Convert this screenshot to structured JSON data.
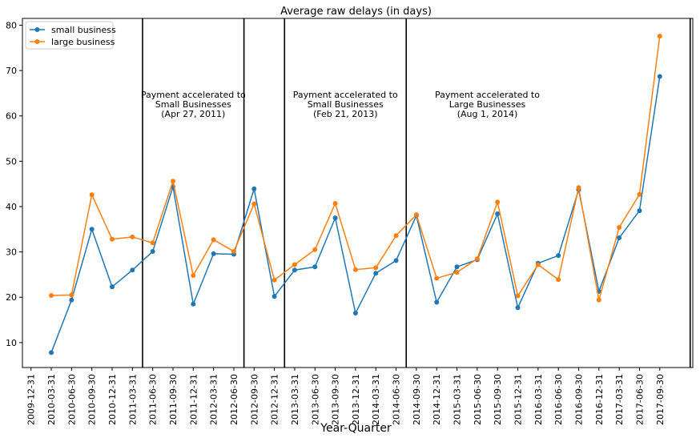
{
  "chart_data": {
    "type": "line",
    "title": "Average raw  delays (in days)",
    "xlabel": "Year-Quarter",
    "ylabel": "",
    "categories": [
      "2009-12-31",
      "2010-03-31",
      "2010-06-30",
      "2010-09-30",
      "2010-12-31",
      "2011-03-31",
      "2011-06-30",
      "2011-09-30",
      "2011-12-31",
      "2012-03-31",
      "2012-06-30",
      "2012-09-30",
      "2012-12-31",
      "2013-03-31",
      "2013-06-30",
      "2013-09-30",
      "2013-12-31",
      "2014-03-31",
      "2014-06-30",
      "2014-09-30",
      "2014-12-31",
      "2015-03-31",
      "2015-06-30",
      "2015-09-30",
      "2015-12-31",
      "2016-03-31",
      "2016-06-30",
      "2016-09-30",
      "2016-12-31",
      "2017-03-31",
      "2017-06-30",
      "2017-09-30"
    ],
    "ylim": [
      4.5,
      81.5
    ],
    "yticks": [
      10,
      20,
      30,
      40,
      50,
      60,
      70,
      80
    ],
    "grid": false,
    "legend_position": "top-left",
    "series": [
      {
        "name": "small business",
        "color": "#1f77b4",
        "points": [
          [
            1,
            7.8
          ],
          [
            2,
            19.4
          ],
          [
            3,
            35.0
          ],
          [
            4,
            22.3
          ],
          [
            5,
            26.0
          ],
          [
            6,
            30.1
          ],
          [
            7,
            44.4
          ],
          [
            8,
            18.5
          ],
          [
            9,
            29.6
          ],
          [
            10,
            29.5
          ],
          [
            11,
            43.9
          ],
          [
            12,
            20.2
          ],
          [
            13,
            26.0
          ],
          [
            14,
            26.7
          ],
          [
            15,
            37.5
          ],
          [
            16,
            16.5
          ],
          [
            17,
            25.3
          ],
          [
            18,
            28.1
          ],
          [
            19,
            38.0
          ],
          [
            20,
            18.9
          ],
          [
            21,
            26.7
          ],
          [
            22,
            28.3
          ],
          [
            23,
            38.4
          ],
          [
            24,
            17.7
          ],
          [
            25,
            27.5
          ],
          [
            26,
            29.2
          ],
          [
            27,
            43.7
          ],
          [
            28,
            21.3
          ],
          [
            29,
            33.1
          ],
          [
            30,
            39.1
          ],
          [
            31,
            68.7
          ]
        ]
      },
      {
        "name": "large business",
        "color": "#ff7f0e",
        "points": [
          [
            1,
            20.4
          ],
          [
            2,
            20.5
          ],
          [
            3,
            42.6
          ],
          [
            4,
            32.8
          ],
          [
            5,
            33.3
          ],
          [
            6,
            32.0
          ],
          [
            7,
            45.6
          ],
          [
            8,
            24.8
          ],
          [
            9,
            32.7
          ],
          [
            10,
            30.1
          ],
          [
            11,
            40.6
          ],
          [
            12,
            23.8
          ],
          [
            13,
            27.2
          ],
          [
            14,
            30.5
          ],
          [
            15,
            40.7
          ],
          [
            16,
            26.1
          ],
          [
            17,
            26.5
          ],
          [
            18,
            33.6
          ],
          [
            19,
            38.2
          ],
          [
            20,
            24.2
          ],
          [
            21,
            25.5
          ],
          [
            22,
            28.5
          ],
          [
            23,
            41.0
          ],
          [
            24,
            20.3
          ],
          [
            25,
            27.2
          ],
          [
            26,
            23.9
          ],
          [
            27,
            44.2
          ],
          [
            28,
            19.4
          ],
          [
            29,
            35.4
          ],
          [
            30,
            42.7
          ],
          [
            31,
            77.6
          ]
        ]
      }
    ],
    "vertical_lines": [
      5.5,
      10.5,
      12.5,
      18.5,
      32.5
    ],
    "annotations": [
      {
        "x": 8.0,
        "y": 64.0,
        "lines": [
          "Payment accelerated to",
          "Small Businesses",
          "(Apr 27, 2011)"
        ]
      },
      {
        "x": 15.5,
        "y": 64.0,
        "lines": [
          "Payment accelerated to",
          "Small Businesses",
          "(Feb 21, 2013)"
        ]
      },
      {
        "x": 22.5,
        "y": 64.0,
        "lines": [
          "Payment accelerated to",
          "Large Businesses",
          "(Aug 1, 2014)"
        ]
      }
    ]
  }
}
